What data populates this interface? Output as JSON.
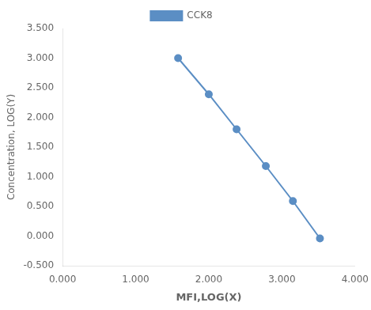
{
  "chart_data": {
    "type": "line",
    "x": [
      1.58,
      2.0,
      2.38,
      2.78,
      3.15,
      3.52
    ],
    "series": [
      {
        "name": "CCK8",
        "color": "#5b8ec4",
        "marker": "circle",
        "values": [
          3.0,
          2.39,
          1.8,
          1.18,
          0.59,
          -0.04
        ]
      }
    ],
    "xlabel": "MFI,LOG(X)",
    "ylabel": "Concentration, LOG(Y)",
    "xlim": [
      0.0,
      4.0
    ],
    "ylim": [
      -0.5,
      3.5
    ],
    "xticks": [
      {
        "value": 0.0,
        "label": "0.000"
      },
      {
        "value": 1.0,
        "label": "1.000"
      },
      {
        "value": 2.0,
        "label": "2.000"
      },
      {
        "value": 3.0,
        "label": "3.000"
      },
      {
        "value": 4.0,
        "label": "4.000"
      }
    ],
    "yticks": [
      {
        "value": -0.5,
        "label": "-0.500"
      },
      {
        "value": 0.0,
        "label": "0.000"
      },
      {
        "value": 0.5,
        "label": "0.500"
      },
      {
        "value": 1.0,
        "label": "1.000"
      },
      {
        "value": 1.5,
        "label": "1.500"
      },
      {
        "value": 2.0,
        "label": "2.000"
      },
      {
        "value": 2.5,
        "label": "2.500"
      },
      {
        "value": 3.0,
        "label": "3.000"
      },
      {
        "value": 3.5,
        "label": "3.500"
      }
    ],
    "grid": false,
    "legend": "top"
  }
}
